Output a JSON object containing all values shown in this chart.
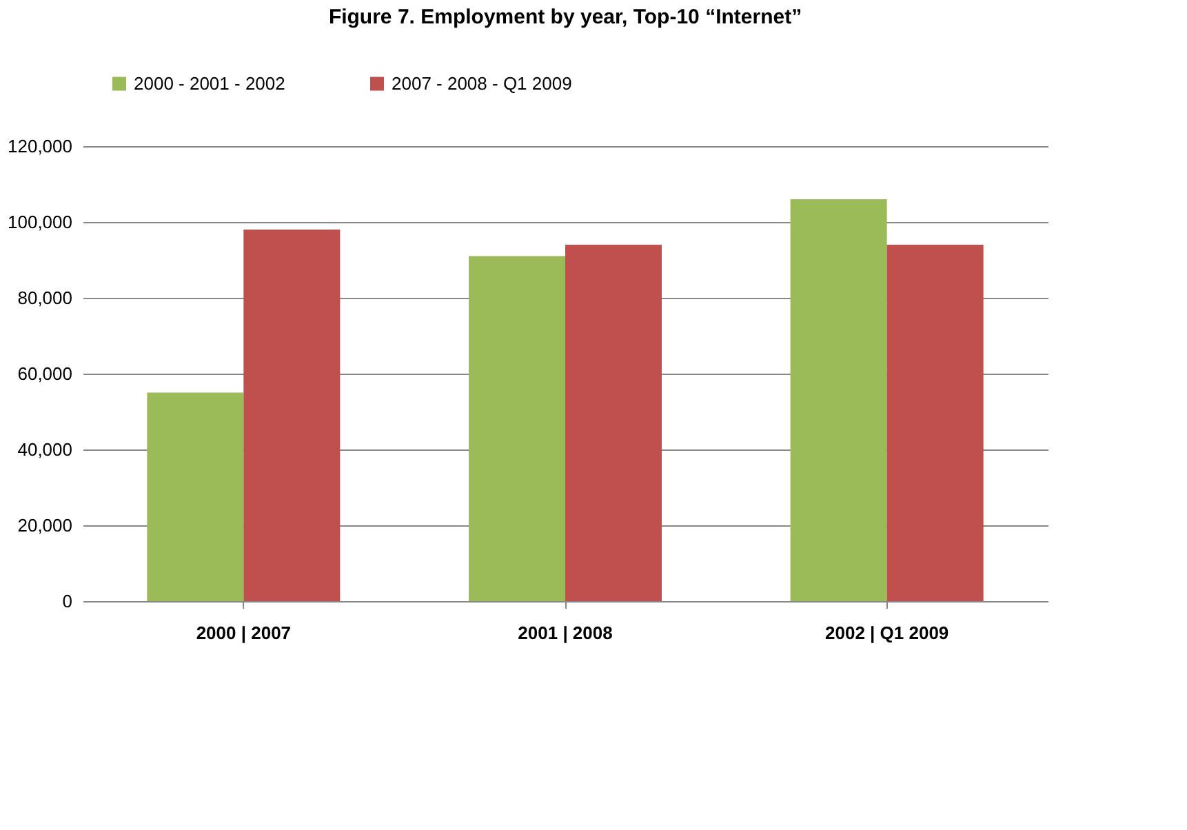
{
  "chart_data": {
    "type": "bar",
    "title": "Figure 7.  Employment by year, Top-10 “Internet”",
    "categories": [
      "2000 | 2007",
      "2001 | 2008",
      "2002 | Q1 2009"
    ],
    "series": [
      {
        "name": "2000 - 2001 - 2002",
        "color": "#9bbb59",
        "values": [
          55000,
          91000,
          106000
        ]
      },
      {
        "name": "2007 - 2008 - Q1 2009",
        "color": "#c0504d",
        "values": [
          98000,
          94000,
          94000
        ]
      }
    ],
    "ylim": [
      0,
      120000
    ],
    "yticks": [
      0,
      {
        "value": 20000,
        "label": "20,000"
      },
      {
        "value": 40000,
        "label": "40,000"
      },
      {
        "value": 60000,
        "label": "60,000"
      },
      {
        "value": 80000,
        "label": "80,000"
      },
      {
        "value": 100000,
        "label": "100,000"
      },
      {
        "value": 120000,
        "label": "120,000"
      }
    ],
    "grid": "y",
    "legend": "top"
  }
}
